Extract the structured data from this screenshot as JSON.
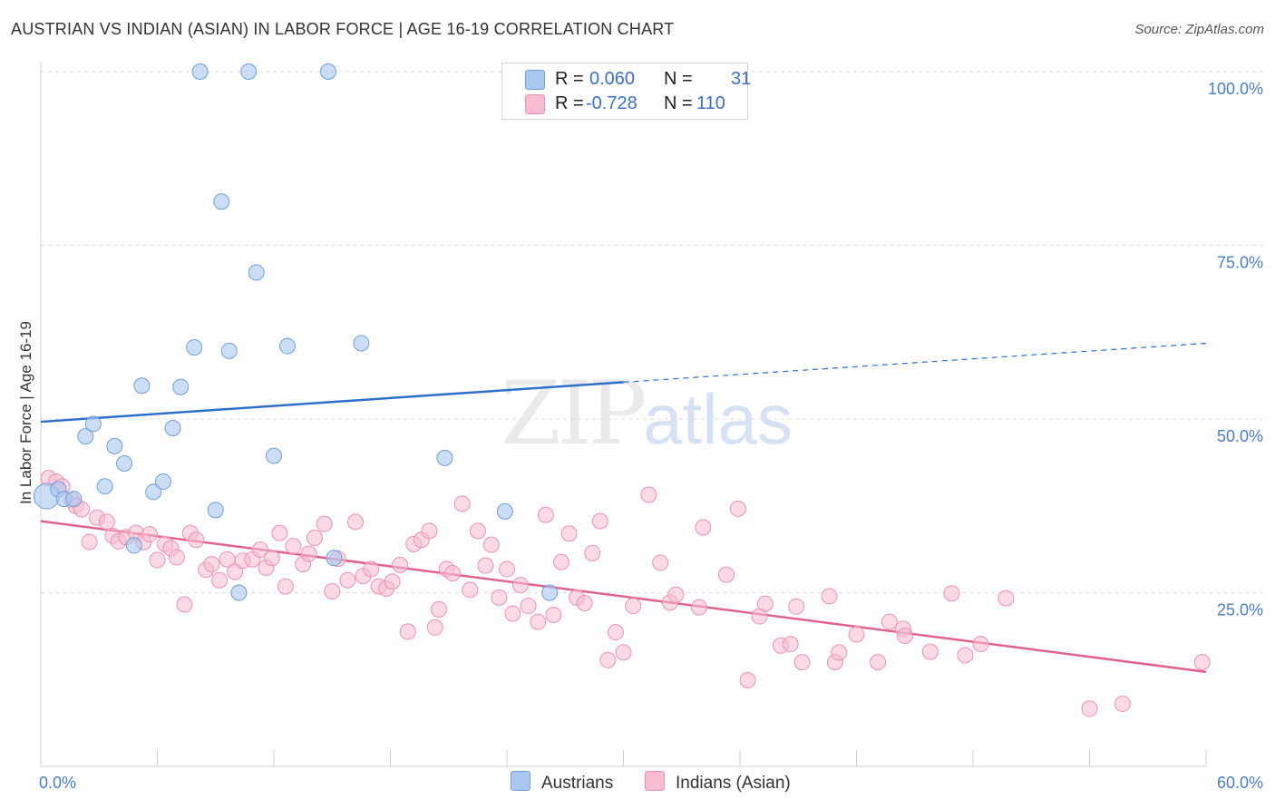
{
  "header": {
    "title": "AUSTRIAN VS INDIAN (ASIAN) IN LABOR FORCE | AGE 16-19 CORRELATION CHART",
    "source": "Source: ZipAtlas.com"
  },
  "watermark": {
    "zip": "ZIP",
    "atlas": "atlas"
  },
  "legend": {
    "rows": [
      {
        "r_label": "R =",
        "r_value": "0.060",
        "n_label": "N =",
        "n_value": "31",
        "color": "#aac8ef"
      },
      {
        "r_label": "R =",
        "r_value": "-0.728",
        "n_label": "N =",
        "n_value": "110",
        "color": "#f7bcd0"
      }
    ]
  },
  "bottom_legend": {
    "austrians": "Austrians",
    "indians": "Indians (Asian)"
  },
  "chart_data": {
    "type": "scatter",
    "title": "AUSTRIAN VS INDIAN (ASIAN) IN LABOR FORCE | AGE 16-19 CORRELATION CHART",
    "ylabel": "In Labor Force | Age 16-19",
    "xlim": [
      0,
      60
    ],
    "ylim": [
      0,
      104
    ],
    "x_tick_labels": [
      "0.0%",
      "60.0%"
    ],
    "y_tick_labels": [
      "25.0%",
      "50.0%",
      "75.0%",
      "100.0%"
    ],
    "y_ticks": [
      25,
      50,
      75,
      100
    ],
    "grid": true,
    "legend_position": "top-center",
    "colors": {
      "austrians": "#aac8ef",
      "austrians_line": "#2f6fcc",
      "indians": "#f7bcd0",
      "indians_line": "#e0628f"
    },
    "series": [
      {
        "name": "Austrians",
        "trend": {
          "x0": 0,
          "y0": 49.6,
          "x1": 30,
          "y1": 55.3,
          "dashed_to_x": 60,
          "dashed_to_y": 60.9
        },
        "points": [
          [
            0.3,
            38.9
          ],
          [
            0.9,
            39.9
          ],
          [
            1.2,
            38.5
          ],
          [
            1.7,
            38.5
          ],
          [
            2.3,
            47.5
          ],
          [
            2.7,
            49.3
          ],
          [
            3.3,
            40.3
          ],
          [
            3.8,
            46.1
          ],
          [
            4.3,
            43.6
          ],
          [
            4.8,
            31.8
          ],
          [
            5.2,
            54.8
          ],
          [
            5.8,
            39.5
          ],
          [
            6.3,
            41.0
          ],
          [
            6.8,
            48.7
          ],
          [
            7.2,
            54.6
          ],
          [
            7.9,
            60.3
          ],
          [
            8.2,
            100
          ],
          [
            9.0,
            36.9
          ],
          [
            9.3,
            81.3
          ],
          [
            9.7,
            59.8
          ],
          [
            10.2,
            25.0
          ],
          [
            10.7,
            100
          ],
          [
            11.1,
            71.1
          ],
          [
            12.0,
            44.7
          ],
          [
            12.7,
            60.5
          ],
          [
            14.8,
            100
          ],
          [
            15.1,
            30.0
          ],
          [
            16.5,
            60.9
          ],
          [
            20.8,
            44.4
          ],
          [
            23.9,
            36.7
          ],
          [
            26.2,
            25.0
          ]
        ]
      },
      {
        "name": "Indians (Asian)",
        "trend": {
          "x0": 0,
          "y0": 35.3,
          "x1": 60,
          "y1": 13.6
        },
        "points": [
          [
            0.4,
            41.5
          ],
          [
            0.8,
            41.0
          ],
          [
            1.1,
            40.3
          ],
          [
            1.6,
            38.3
          ],
          [
            1.8,
            37.5
          ],
          [
            2.1,
            37.0
          ],
          [
            2.5,
            32.3
          ],
          [
            2.9,
            35.8
          ],
          [
            3.4,
            35.2
          ],
          [
            3.7,
            33.2
          ],
          [
            4.0,
            32.4
          ],
          [
            4.4,
            33.0
          ],
          [
            4.9,
            33.6
          ],
          [
            5.3,
            32.3
          ],
          [
            5.6,
            33.4
          ],
          [
            6.0,
            29.7
          ],
          [
            6.4,
            32.0
          ],
          [
            6.7,
            31.4
          ],
          [
            7.0,
            30.1
          ],
          [
            7.4,
            23.3
          ],
          [
            7.7,
            33.6
          ],
          [
            8.0,
            32.6
          ],
          [
            8.5,
            28.3
          ],
          [
            8.8,
            29.1
          ],
          [
            9.2,
            26.8
          ],
          [
            9.6,
            29.8
          ],
          [
            10.0,
            28.0
          ],
          [
            10.4,
            29.6
          ],
          [
            10.9,
            29.8
          ],
          [
            11.3,
            31.2
          ],
          [
            11.6,
            28.6
          ],
          [
            11.9,
            30.0
          ],
          [
            12.3,
            33.6
          ],
          [
            12.6,
            25.9
          ],
          [
            13.0,
            31.7
          ],
          [
            13.5,
            29.1
          ],
          [
            13.8,
            30.6
          ],
          [
            14.1,
            32.9
          ],
          [
            14.6,
            34.9
          ],
          [
            15.0,
            25.2
          ],
          [
            15.3,
            29.9
          ],
          [
            15.8,
            26.8
          ],
          [
            16.2,
            35.2
          ],
          [
            16.6,
            27.4
          ],
          [
            17.0,
            28.4
          ],
          [
            17.4,
            25.9
          ],
          [
            17.8,
            25.6
          ],
          [
            18.1,
            26.6
          ],
          [
            18.5,
            29.0
          ],
          [
            18.9,
            19.4
          ],
          [
            19.2,
            32.0
          ],
          [
            19.6,
            32.6
          ],
          [
            20.0,
            33.9
          ],
          [
            20.3,
            20.0
          ],
          [
            20.5,
            22.6
          ],
          [
            20.9,
            28.4
          ],
          [
            21.2,
            27.8
          ],
          [
            21.7,
            37.8
          ],
          [
            22.1,
            25.4
          ],
          [
            22.5,
            33.9
          ],
          [
            22.9,
            28.9
          ],
          [
            23.2,
            31.9
          ],
          [
            23.6,
            24.3
          ],
          [
            24.0,
            28.4
          ],
          [
            24.3,
            22.0
          ],
          [
            24.7,
            26.1
          ],
          [
            25.1,
            23.1
          ],
          [
            25.6,
            20.8
          ],
          [
            26.0,
            36.2
          ],
          [
            26.4,
            21.8
          ],
          [
            26.8,
            29.4
          ],
          [
            27.2,
            33.5
          ],
          [
            27.6,
            24.3
          ],
          [
            28.0,
            23.5
          ],
          [
            28.4,
            30.7
          ],
          [
            28.8,
            35.3
          ],
          [
            29.2,
            15.3
          ],
          [
            29.6,
            19.3
          ],
          [
            30.0,
            16.4
          ],
          [
            30.5,
            23.1
          ],
          [
            31.3,
            39.1
          ],
          [
            31.9,
            29.3
          ],
          [
            32.4,
            23.6
          ],
          [
            32.7,
            24.7
          ],
          [
            33.9,
            22.9
          ],
          [
            34.1,
            34.4
          ],
          [
            35.3,
            27.6
          ],
          [
            35.9,
            37.1
          ],
          [
            36.4,
            12.4
          ],
          [
            37.0,
            21.6
          ],
          [
            37.3,
            23.4
          ],
          [
            38.1,
            17.4
          ],
          [
            38.6,
            17.6
          ],
          [
            38.9,
            23.0
          ],
          [
            39.2,
            15.0
          ],
          [
            40.6,
            24.5
          ],
          [
            40.9,
            15.0
          ],
          [
            41.1,
            16.4
          ],
          [
            42.0,
            19.0
          ],
          [
            43.1,
            15.0
          ],
          [
            43.7,
            20.8
          ],
          [
            44.4,
            19.8
          ],
          [
            44.5,
            18.8
          ],
          [
            45.8,
            16.5
          ],
          [
            46.9,
            24.9
          ],
          [
            47.6,
            16.0
          ],
          [
            48.4,
            17.6
          ],
          [
            49.7,
            24.2
          ],
          [
            54.0,
            8.3
          ],
          [
            55.7,
            9.0
          ],
          [
            59.8,
            15.0
          ]
        ]
      }
    ]
  }
}
